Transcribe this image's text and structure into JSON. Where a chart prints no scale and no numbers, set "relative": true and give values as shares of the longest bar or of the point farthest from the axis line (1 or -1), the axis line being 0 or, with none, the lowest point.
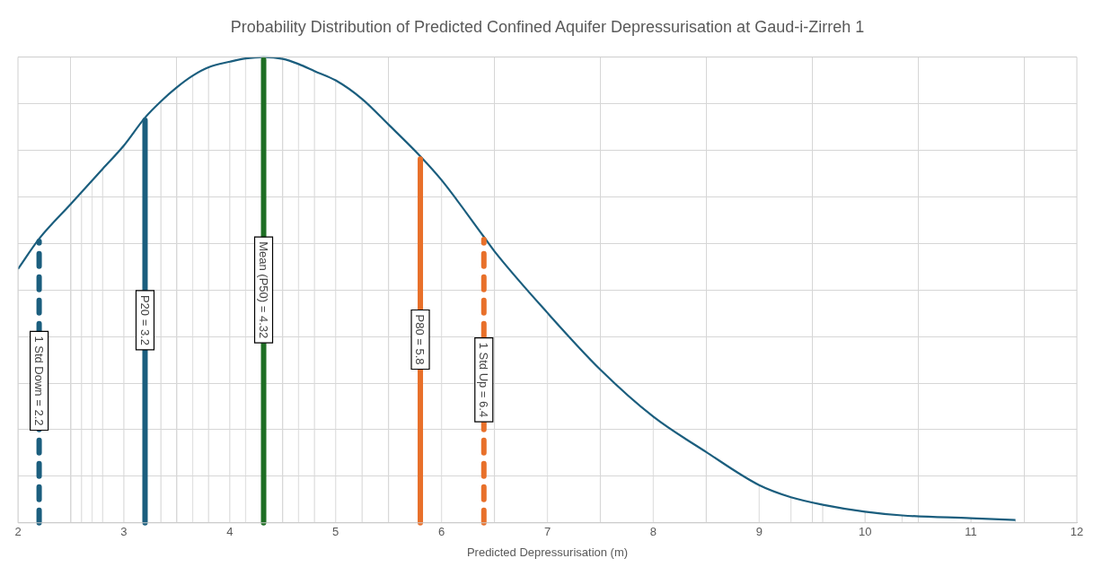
{
  "chart_data": {
    "type": "line",
    "title": "Probability Distribution of Predicted Confined Aquifer Depressurisation at Gaud-i-Zirreh 1",
    "xlabel": "Predicted Depressurisation (m)",
    "relative": true,
    "grid": true,
    "legend": false,
    "marker": "none",
    "xlim": [
      2,
      12
    ],
    "xticks": [
      2,
      3,
      4,
      5,
      6,
      7,
      8,
      9,
      10,
      11,
      12
    ],
    "x": [
      2.0,
      2.2,
      2.5,
      2.6,
      2.7,
      2.8,
      3.0,
      3.2,
      3.35,
      3.5,
      3.65,
      3.8,
      4.0,
      4.15,
      4.32,
      4.5,
      4.65,
      4.8,
      5.0,
      5.25,
      5.5,
      5.8,
      6.0,
      6.4,
      6.5,
      7.0,
      7.5,
      8.0,
      8.5,
      9.0,
      9.3,
      9.6,
      10.0,
      10.35,
      11.0,
      11.42
    ],
    "series": [
      {
        "type": "bar",
        "color": "#d9d9d9",
        "values": [
          0.545,
          null,
          0.685,
          0.71,
          0.735,
          0.76,
          0.81,
          null,
          0.905,
          0.935,
          0.96,
          0.978,
          0.99,
          0.997,
          null,
          0.996,
          0.985,
          0.97,
          0.95,
          0.91,
          0.855,
          null,
          0.736,
          null,
          0.583,
          0.451,
          0.329,
          0.228,
          0.152,
          0.081,
          0.055,
          0.039,
          0.024,
          0.016,
          0.01,
          0.006
        ]
      },
      {
        "color": "#1b5e7e",
        "values": [
          0.545,
          0.61,
          0.685,
          0.71,
          0.735,
          0.76,
          0.81,
          0.87,
          0.905,
          0.935,
          0.96,
          0.978,
          0.99,
          0.997,
          1.0,
          0.996,
          0.985,
          0.97,
          0.95,
          0.91,
          0.855,
          0.787,
          0.736,
          0.614,
          0.583,
          0.451,
          0.329,
          0.228,
          0.152,
          0.081,
          0.055,
          0.039,
          0.024,
          0.016,
          0.01,
          0.006
        ]
      }
    ],
    "ref_lines": [
      {
        "axis": "x",
        "value": 2.2,
        "label": "1 Std Down = 2.2",
        "color": "#1b5e7e",
        "line_style": "dashed"
      },
      {
        "axis": "x",
        "value": 3.2,
        "label": "P20 = 3.2",
        "color": "#1b5e7e",
        "line_style": "solid"
      },
      {
        "axis": "x",
        "value": 4.32,
        "label": "Mean (P50) = 4.32",
        "color": "#1e6e24",
        "line_style": "solid"
      },
      {
        "axis": "x",
        "value": 5.8,
        "label": "P80 = 5.8",
        "color": "#e8702a",
        "line_style": "solid"
      },
      {
        "axis": "x",
        "value": 6.4,
        "label": "1 Std Up = 6.4",
        "color": "#e8702a",
        "line_style": "dashed"
      }
    ]
  }
}
